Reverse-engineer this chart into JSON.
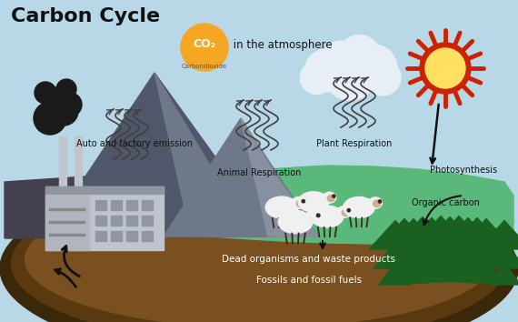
{
  "bg_color": "#b8d8e8",
  "title": "Carbon Cycle",
  "title_fontsize": 16,
  "title_color": "#111111",
  "title_fontweight": "bold",
  "co2_circle_color": "#f5a623",
  "co2_text": "CO₂",
  "co2_sub": "Carbondioxide",
  "co2_atm_text": " in the atmosphere",
  "ground_outer_color": "#4a2f0a",
  "ground_layer2_color": "#6b4010",
  "ground_layer3_color": "#8a5a20",
  "ground_surface_color": "#5ab87a",
  "ground_dark_color": "#3a3040",
  "mountain_left_color": "#50576a",
  "mountain_right_color": "#6e7885",
  "factory_body_color": "#c0c4cc",
  "factory_dark_color": "#9096a0",
  "smoke_color": "#222222",
  "tree_color": "#1a6020",
  "tree_dark_color": "#0f4015",
  "tree_trunk_color": "#6b4820",
  "sheep_color": "#f0f0f0",
  "sheep_dark_color": "#d0d0d0",
  "sheep_face_color": "#3a2a18",
  "sun_outer_color": "#cc2200",
  "sun_inner_color": "#ffe060",
  "sun_mid_color": "#ff8800",
  "cloud_color": "#e8eef5",
  "arrow_color": "#111111",
  "label_color": "#111111",
  "label_white": "#ffffff",
  "labels": {
    "auto_emission": "Auto and factory emission",
    "animal_resp": "Animal Respiration",
    "plant_resp": "Plant Respiration",
    "photosynthesis": "Photosynthesis",
    "organic_carbon": "Organic carbon",
    "dead_organisms": "Dead organisms and waste products",
    "fossils": "Fossils and fossil fuels"
  },
  "label_fontsize": 7.0,
  "label_fontsize_ground": 7.5
}
